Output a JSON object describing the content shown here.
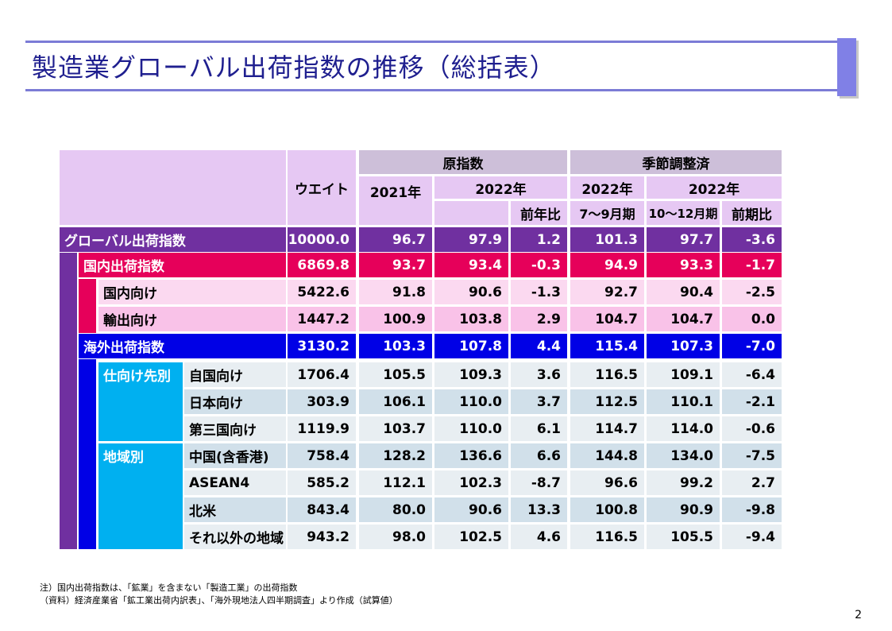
{
  "title": "製造業グローバル出荷指数の推移（総括表）",
  "header": {
    "weight": "ウエイト",
    "raw_index": "原指数",
    "seasonal": "季節調整済",
    "y2021": "2021年",
    "y2022a": "2022年",
    "y2022b": "2022年",
    "y2022c": "2022年",
    "yoy": "前年比",
    "q3": "7～9月期",
    "q4": "10～12月期",
    "qoq": "前期比"
  },
  "group_labels": {
    "destination": "仕向け先別",
    "region": "地域別"
  },
  "rows": [
    {
      "label": "グローバル出荷指数",
      "weight": "10000.0",
      "y2021": "96.7",
      "y2022": "97.9",
      "yoy": "1.2",
      "q3": "101.3",
      "q4": "97.7",
      "qoq": "-3.6"
    },
    {
      "label": "国内出荷指数",
      "weight": "6869.8",
      "y2021": "93.7",
      "y2022": "93.4",
      "yoy": "-0.3",
      "q3": "94.9",
      "q4": "93.3",
      "qoq": "-1.7"
    },
    {
      "label": "国内向け",
      "weight": "5422.6",
      "y2021": "91.8",
      "y2022": "90.6",
      "yoy": "-1.3",
      "q3": "92.7",
      "q4": "90.4",
      "qoq": "-2.5"
    },
    {
      "label": "輸出向け",
      "weight": "1447.2",
      "y2021": "100.9",
      "y2022": "103.8",
      "yoy": "2.9",
      "q3": "104.7",
      "q4": "104.7",
      "qoq": "0.0"
    },
    {
      "label": "海外出荷指数",
      "weight": "3130.2",
      "y2021": "103.3",
      "y2022": "107.8",
      "yoy": "4.4",
      "q3": "115.4",
      "q4": "107.3",
      "qoq": "-7.0"
    },
    {
      "label": "自国向け",
      "weight": "1706.4",
      "y2021": "105.5",
      "y2022": "109.3",
      "yoy": "3.6",
      "q3": "116.5",
      "q4": "109.1",
      "qoq": "-6.4"
    },
    {
      "label": "日本向け",
      "weight": "303.9",
      "y2021": "106.1",
      "y2022": "110.0",
      "yoy": "3.7",
      "q3": "112.5",
      "q4": "110.1",
      "qoq": "-2.1"
    },
    {
      "label": "第三国向け",
      "weight": "1119.9",
      "y2021": "103.7",
      "y2022": "110.0",
      "yoy": "6.1",
      "q3": "114.7",
      "q4": "114.0",
      "qoq": "-0.6"
    },
    {
      "label": "中国(含香港)",
      "weight": "758.4",
      "y2021": "128.2",
      "y2022": "136.6",
      "yoy": "6.6",
      "q3": "144.8",
      "q4": "134.0",
      "qoq": "-7.5"
    },
    {
      "label": "ASEAN4",
      "weight": "585.2",
      "y2021": "112.1",
      "y2022": "102.3",
      "yoy": "-8.7",
      "q3": "96.6",
      "q4": "99.2",
      "qoq": "2.7"
    },
    {
      "label": "北米",
      "weight": "843.4",
      "y2021": "80.0",
      "y2022": "90.6",
      "yoy": "13.3",
      "q3": "100.8",
      "q4": "90.9",
      "qoq": "-9.8"
    },
    {
      "label": "それ以外の地域",
      "weight": "943.2",
      "y2021": "98.0",
      "y2022": "102.5",
      "yoy": "4.6",
      "q3": "116.5",
      "q4": "105.5",
      "qoq": "-9.4"
    }
  ],
  "notes": [
    "注）国内出荷指数は、「鉱業」を含まない「製造工業」の出荷指数",
    "（資料）経済産業省「鉱工業出荷内訳表」、「海外現地法人四半期調査」より作成（試算値）"
  ],
  "page_number": "2"
}
